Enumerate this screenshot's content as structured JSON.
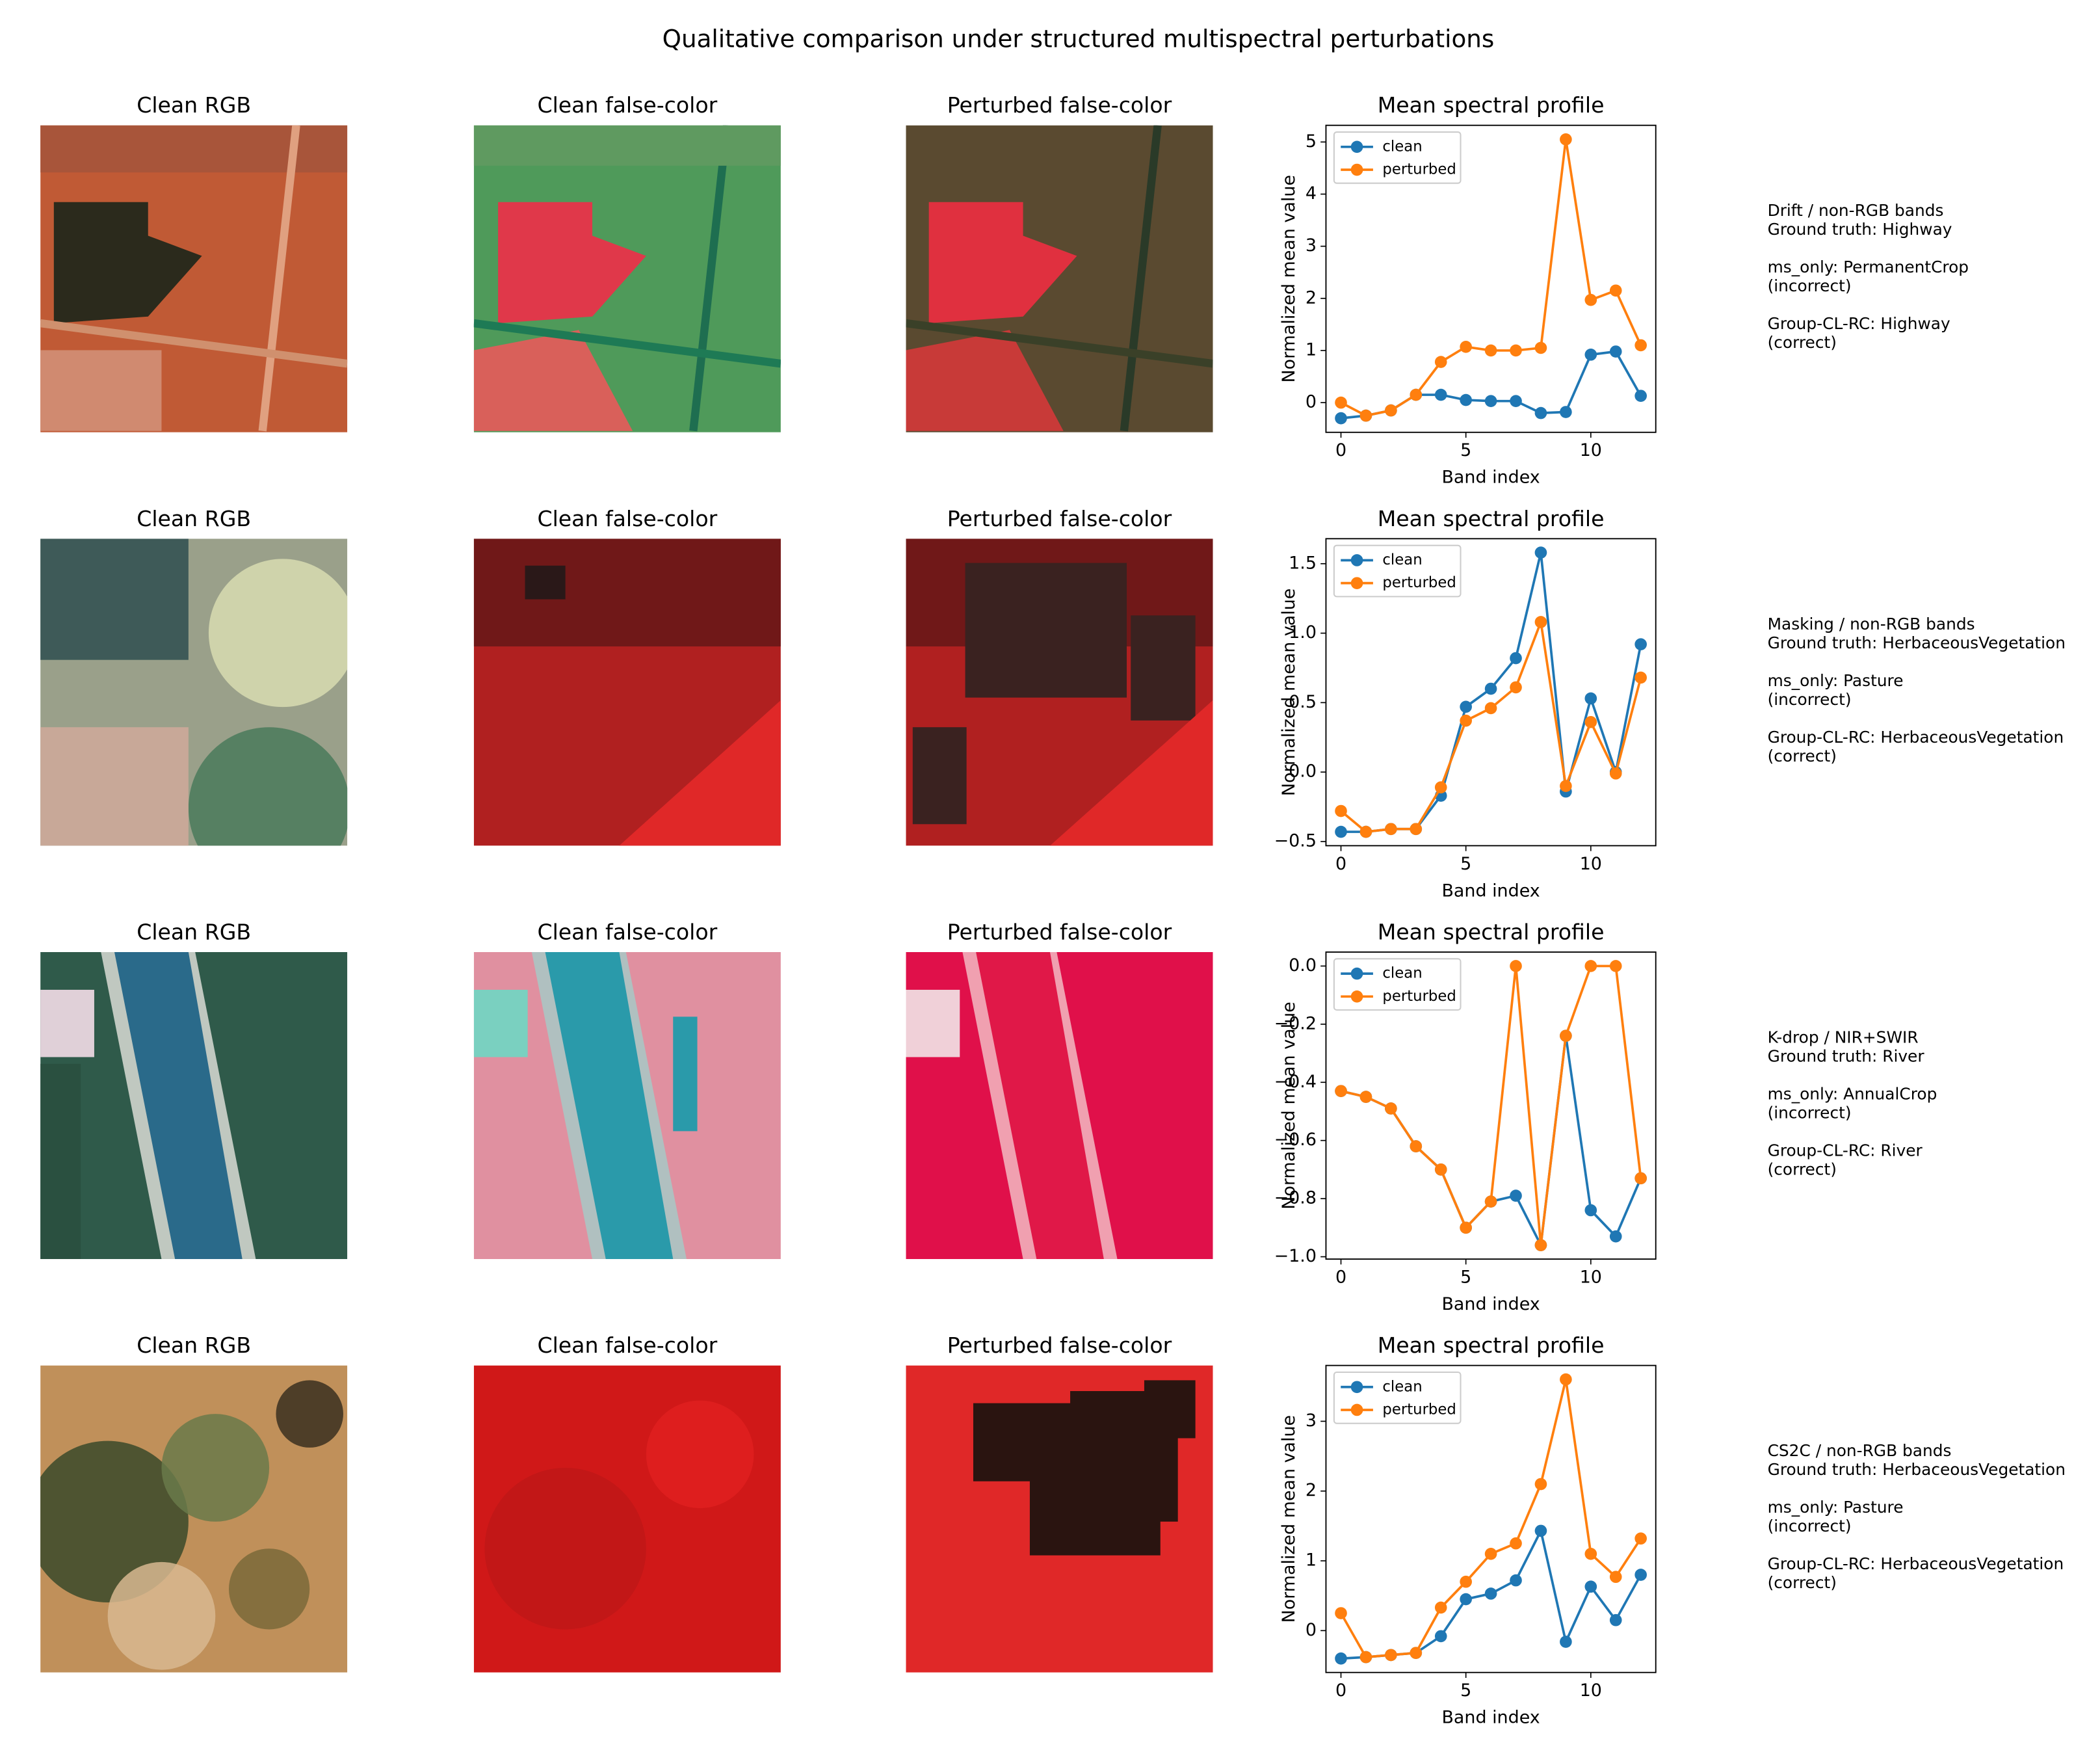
{
  "figure": {
    "title": "Qualitative comparison under structured multispectral perturbations",
    "rows": [
      {
        "panels": [
          "Clean RGB",
          "Clean false-color",
          "Perturbed false-color"
        ],
        "notes": [
          [
            "Drift / non-RGB bands",
            "Ground truth: Highway"
          ],
          [
            "ms_only: PermanentCrop",
            "(incorrect)"
          ],
          [
            "Group-CL-RC: Highway",
            "(correct)"
          ]
        ]
      },
      {
        "panels": [
          "Clean RGB",
          "Clean false-color",
          "Perturbed false-color"
        ],
        "notes": [
          [
            "Masking / non-RGB bands",
            "Ground truth: HerbaceousVegetation"
          ],
          [
            "ms_only: Pasture",
            "(incorrect)"
          ],
          [
            "Group-CL-RC: HerbaceousVegetation",
            "(correct)"
          ]
        ]
      },
      {
        "panels": [
          "Clean RGB",
          "Clean false-color",
          "Perturbed false-color"
        ],
        "notes": [
          [
            "K-drop / NIR+SWIR",
            "Ground truth: River"
          ],
          [
            "ms_only: AnnualCrop",
            "(incorrect)"
          ],
          [
            "Group-CL-RC: River",
            "(correct)"
          ]
        ]
      },
      {
        "panels": [
          "Clean RGB",
          "Clean false-color",
          "Perturbed false-color"
        ],
        "notes": [
          [
            "CS2C / non-RGB bands",
            "Ground truth: HerbaceousVegetation"
          ],
          [
            "ms_only: Pasture",
            "(incorrect)"
          ],
          [
            "Group-CL-RC: HerbaceousVegetation",
            "(correct)"
          ]
        ]
      }
    ]
  },
  "chart_data": [
    {
      "type": "line",
      "title": "Mean spectral profile",
      "xlabel": "Band index",
      "ylabel": "Normalized mean value",
      "x": [
        0,
        1,
        2,
        3,
        4,
        5,
        6,
        7,
        8,
        9,
        10,
        11,
        12
      ],
      "series": [
        {
          "name": "clean",
          "color": "#1f77b4",
          "values": [
            -0.3,
            -0.25,
            -0.15,
            0.15,
            0.15,
            0.05,
            0.03,
            0.03,
            -0.2,
            -0.18,
            0.92,
            0.98,
            0.13
          ]
        },
        {
          "name": "perturbed",
          "color": "#ff7f0e",
          "values": [
            0.0,
            -0.25,
            -0.15,
            0.15,
            0.78,
            1.07,
            1.0,
            1.0,
            1.05,
            5.05,
            1.97,
            2.15,
            1.1
          ]
        }
      ],
      "xlim": [
        -0.6,
        12.6
      ],
      "ylim": [
        -0.57,
        5.32
      ],
      "xticks": [
        0,
        5,
        10
      ],
      "yticks": [
        0,
        1,
        2,
        3,
        4,
        5
      ],
      "legend": "upper left"
    },
    {
      "type": "line",
      "title": "Mean spectral profile",
      "xlabel": "Band index",
      "ylabel": "Normalized mean value",
      "x": [
        0,
        1,
        2,
        3,
        4,
        5,
        6,
        7,
        8,
        9,
        10,
        11,
        12
      ],
      "series": [
        {
          "name": "clean",
          "color": "#1f77b4",
          "values": [
            -0.43,
            -0.43,
            -0.41,
            -0.41,
            -0.17,
            0.47,
            0.6,
            0.82,
            1.58,
            -0.14,
            0.53,
            0.0,
            0.92
          ]
        },
        {
          "name": "perturbed",
          "color": "#ff7f0e",
          "values": [
            -0.28,
            -0.43,
            -0.41,
            -0.41,
            -0.11,
            0.37,
            0.46,
            0.61,
            1.08,
            -0.1,
            0.36,
            -0.01,
            0.68
          ]
        }
      ],
      "xlim": [
        -0.6,
        12.6
      ],
      "ylim": [
        -0.53,
        1.68
      ],
      "xticks": [
        0,
        5,
        10
      ],
      "yticks": [
        {
          "value": -0.5,
          "label": "−0.5"
        },
        {
          "value": 0,
          "label": "0.0"
        },
        0.5,
        {
          "value": 1,
          "label": "1.0"
        },
        1.5
      ],
      "legend": "upper left"
    },
    {
      "type": "line",
      "title": "Mean spectral profile",
      "xlabel": "Band index",
      "ylabel": "Normalized mean value",
      "x": [
        0,
        1,
        2,
        3,
        4,
        5,
        6,
        7,
        8,
        9,
        10,
        11,
        12
      ],
      "series": [
        {
          "name": "clean",
          "color": "#1f77b4",
          "values": [
            -0.43,
            -0.45,
            -0.49,
            -0.62,
            -0.7,
            -0.9,
            -0.81,
            -0.79,
            -0.96,
            -0.24,
            -0.84,
            -0.93,
            -0.73
          ]
        },
        {
          "name": "perturbed",
          "color": "#ff7f0e",
          "values": [
            -0.43,
            -0.45,
            -0.49,
            -0.62,
            -0.7,
            -0.9,
            -0.81,
            0.0,
            -0.96,
            -0.24,
            0.0,
            0.0,
            -0.73
          ]
        }
      ],
      "xlim": [
        -0.6,
        12.6
      ],
      "ylim": [
        -1.008,
        0.048
      ],
      "xticks": [
        0,
        5,
        10
      ],
      "yticks": [
        {
          "value": -1,
          "label": "−1.0"
        },
        {
          "value": -0.8,
          "label": "−0.8"
        },
        {
          "value": -0.6,
          "label": "−0.6"
        },
        {
          "value": -0.4,
          "label": "−0.4"
        },
        {
          "value": -0.2,
          "label": "−0.2"
        },
        {
          "value": 0,
          "label": "0.0"
        }
      ],
      "legend": "upper left"
    },
    {
      "type": "line",
      "title": "Mean spectral profile",
      "xlabel": "Band index",
      "ylabel": "Normalized mean value",
      "x": [
        0,
        1,
        2,
        3,
        4,
        5,
        6,
        7,
        8,
        9,
        10,
        11,
        12
      ],
      "series": [
        {
          "name": "clean",
          "color": "#1f77b4",
          "values": [
            -0.4,
            -0.38,
            -0.35,
            -0.32,
            -0.08,
            0.45,
            0.53,
            0.72,
            1.43,
            -0.16,
            0.63,
            0.15,
            0.8
          ]
        },
        {
          "name": "perturbed",
          "color": "#ff7f0e",
          "values": [
            0.25,
            -0.38,
            -0.35,
            -0.32,
            0.33,
            0.7,
            1.1,
            1.25,
            2.1,
            3.6,
            1.1,
            0.77,
            1.32
          ]
        }
      ],
      "xlim": [
        -0.6,
        12.6
      ],
      "ylim": [
        -0.6,
        3.8
      ],
      "xticks": [
        0,
        5,
        10
      ],
      "yticks": [
        0,
        1,
        2,
        3
      ],
      "legend": "upper left"
    }
  ]
}
